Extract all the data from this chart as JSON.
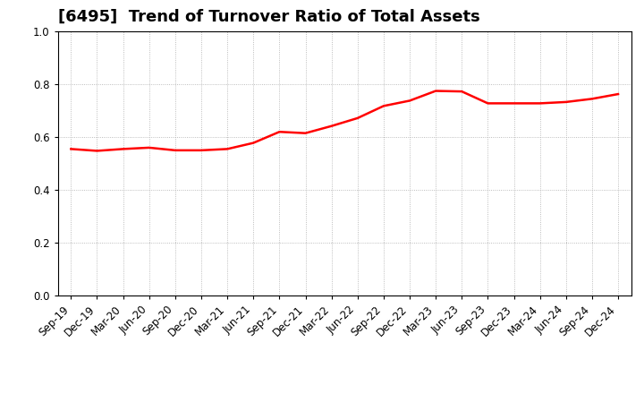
{
  "title": "[6495]  Trend of Turnover Ratio of Total Assets",
  "x_labels": [
    "Sep-19",
    "Dec-19",
    "Mar-20",
    "Jun-20",
    "Sep-20",
    "Dec-20",
    "Mar-21",
    "Jun-21",
    "Sep-21",
    "Dec-21",
    "Mar-22",
    "Jun-22",
    "Sep-22",
    "Dec-22",
    "Mar-23",
    "Jun-23",
    "Sep-23",
    "Dec-23",
    "Mar-24",
    "Jun-24",
    "Sep-24",
    "Dec-24"
  ],
  "y_values": [
    0.555,
    0.548,
    0.555,
    0.56,
    0.55,
    0.55,
    0.555,
    0.578,
    0.62,
    0.615,
    0.642,
    0.672,
    0.718,
    0.738,
    0.775,
    0.773,
    0.728,
    0.728,
    0.728,
    0.733,
    0.745,
    0.763
  ],
  "line_color": "#FF0000",
  "line_width": 1.8,
  "background_color": "#ffffff",
  "plot_background_color": "#ffffff",
  "grid_color": "#aaaaaa",
  "ylim": [
    0.0,
    1.0
  ],
  "yticks": [
    0.0,
    0.2,
    0.4,
    0.6,
    0.8,
    1.0
  ],
  "title_fontsize": 13,
  "tick_fontsize": 8.5,
  "title_color": "#000000",
  "spine_color": "#000000"
}
